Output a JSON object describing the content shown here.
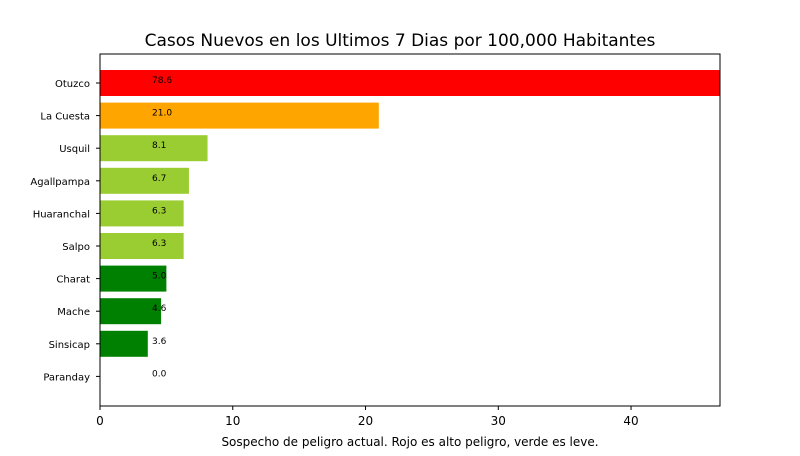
{
  "chart_data": {
    "type": "bar",
    "orientation": "horizontal",
    "title": "Casos Nuevos en los Ultimos 7 Dias por 100,000 Habitantes",
    "xlabel": "Sospecho de peligro actual. Rojo es alto peligro, verde es leve.",
    "ylabel": "",
    "xlim": [
      0,
      46.7
    ],
    "xticks": [
      "0",
      "10",
      "20",
      "30",
      "40"
    ],
    "grid": false,
    "categories": [
      "Otuzco",
      "La Cuesta",
      "Usquil",
      "Agallpampa",
      "Huaranchal",
      "Salpo",
      "Charat",
      "Mache",
      "Sinsicap",
      "Paranday"
    ],
    "values": [
      78.6,
      21.0,
      8.1,
      6.7,
      6.3,
      6.3,
      5.0,
      4.6,
      3.6,
      0.0
    ],
    "value_labels": [
      "78.6",
      "21.0",
      "8.1",
      "6.7",
      "6.3",
      "6.3",
      "5.0",
      "4.6",
      "3.6",
      "0.0"
    ],
    "colors": [
      "#ff0000",
      "#ffa500",
      "#9acd32",
      "#9acd32",
      "#9acd32",
      "#9acd32",
      "#008000",
      "#008000",
      "#008000",
      "#008000"
    ]
  }
}
